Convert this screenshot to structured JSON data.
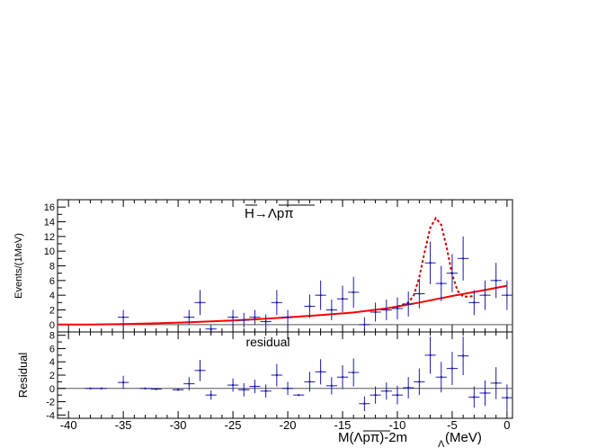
{
  "chart_data": [
    {
      "type": "scatter",
      "panel": "fit",
      "title": "",
      "annotation": "H→Λpπ",
      "annotation_overline": true,
      "ylabel": "Events/(1MeV)",
      "xlim": [
        -41,
        0.5
      ],
      "ylim": [
        -1,
        17
      ],
      "yticks": [
        0,
        2,
        4,
        6,
        8,
        10,
        12,
        14,
        16
      ],
      "grid": false,
      "series": [
        {
          "kind": "data-points-with-errors",
          "color": "#1a1aa8",
          "points": [
            {
              "x": -35,
              "y": 1,
              "err": 1
            },
            {
              "x": -29,
              "y": 1,
              "err": 1
            },
            {
              "x": -28,
              "y": 3,
              "err": 1.7
            },
            {
              "x": -27,
              "y": -0.6,
              "err": 0.6
            },
            {
              "x": -25,
              "y": 1,
              "err": 1
            },
            {
              "x": -24,
              "y": 0.6,
              "err": 1
            },
            {
              "x": -23,
              "y": 1,
              "err": 1
            },
            {
              "x": -22,
              "y": 0.4,
              "err": 1
            },
            {
              "x": -21,
              "y": 3,
              "err": 1.7
            },
            {
              "x": -20,
              "y": 1,
              "err": 1
            },
            {
              "x": -18,
              "y": 2.5,
              "err": 1.6
            },
            {
              "x": -17,
              "y": 4,
              "err": 2
            },
            {
              "x": -16,
              "y": 2,
              "err": 1.4
            },
            {
              "x": -15,
              "y": 3.5,
              "err": 1.8
            },
            {
              "x": -14,
              "y": 4.4,
              "err": 2.1
            },
            {
              "x": -13,
              "y": 0,
              "err": 1
            },
            {
              "x": -12,
              "y": 1.7,
              "err": 1.3
            },
            {
              "x": -11,
              "y": 2,
              "err": 1.4
            },
            {
              "x": -10,
              "y": 2.2,
              "err": 1.5
            },
            {
              "x": -9,
              "y": 2.8,
              "err": 1.7
            },
            {
              "x": -8,
              "y": 4.2,
              "err": 2
            },
            {
              "x": -7,
              "y": 8.4,
              "err": 2.9
            },
            {
              "x": -6,
              "y": 5.6,
              "err": 2.4
            },
            {
              "x": -5,
              "y": 7,
              "err": 2.6
            },
            {
              "x": -4,
              "y": 9,
              "err": 3
            },
            {
              "x": -3,
              "y": 3,
              "err": 1.7
            },
            {
              "x": -2,
              "y": 4,
              "err": 2
            },
            {
              "x": -1,
              "y": 6,
              "err": 2.4
            },
            {
              "x": 0,
              "y": 4,
              "err": 2
            }
          ]
        },
        {
          "kind": "background-fit",
          "style": "solid",
          "color": "#ff0000",
          "x": [
            -41,
            -38,
            -35,
            -32,
            -29,
            -26,
            -23,
            -20,
            -17,
            -14,
            -11,
            -8,
            -5,
            -2,
            0
          ],
          "y": [
            0.0,
            0.02,
            0.08,
            0.18,
            0.32,
            0.5,
            0.72,
            0.98,
            1.29,
            1.64,
            2.2,
            3.0,
            3.9,
            4.7,
            5.3
          ]
        },
        {
          "kind": "signal-plus-background",
          "style": "dotted",
          "color": "#cc0000",
          "x": [
            -10,
            -9,
            -8.5,
            -8,
            -7.5,
            -7,
            -6.5,
            -6,
            -5.5,
            -5,
            -4.5,
            -4,
            -3.5,
            -3
          ],
          "y": [
            2.45,
            3.0,
            4.0,
            6.5,
            10.0,
            13.2,
            14.5,
            13.6,
            10.5,
            6.8,
            4.6,
            3.8,
            3.8,
            3.9
          ]
        }
      ]
    },
    {
      "type": "scatter",
      "panel": "residual",
      "annotation": "residual",
      "xlabel": "M(Λpπ)-2m",
      "xlabel_overline_part": "Λpπ",
      "xlabel_subscript": "Λ",
      "xlabel_unit": "(MeV)",
      "ylabel": "Residual",
      "xlim": [
        -41,
        0.5
      ],
      "ylim": [
        -4.5,
        8.5
      ],
      "yticks": [
        -4,
        -2,
        0,
        2,
        4,
        6,
        8
      ],
      "xticks": [
        -40,
        -35,
        -30,
        -25,
        -20,
        -15,
        -10,
        -5,
        0
      ],
      "grid": false,
      "series": [
        {
          "kind": "data-points-with-errors",
          "color": "#1a1aa8",
          "points": [
            {
              "x": -38,
              "y": 0,
              "err": 0
            },
            {
              "x": -37,
              "y": 0,
              "err": 0
            },
            {
              "x": -35,
              "y": 0.9,
              "err": 1
            },
            {
              "x": -33,
              "y": 0,
              "err": 0
            },
            {
              "x": -32,
              "y": -0.1,
              "err": 0
            },
            {
              "x": -30,
              "y": -0.2,
              "err": 0
            },
            {
              "x": -29,
              "y": 0.7,
              "err": 1
            },
            {
              "x": -28,
              "y": 2.7,
              "err": 1.6
            },
            {
              "x": -27,
              "y": -1,
              "err": 0.7
            },
            {
              "x": -25,
              "y": 0.5,
              "err": 1
            },
            {
              "x": -24,
              "y": -0.2,
              "err": 1
            },
            {
              "x": -23,
              "y": 0.3,
              "err": 1
            },
            {
              "x": -22,
              "y": -0.4,
              "err": 1
            },
            {
              "x": -21,
              "y": 2,
              "err": 1.7
            },
            {
              "x": -20,
              "y": 0,
              "err": 1
            },
            {
              "x": -19,
              "y": -1,
              "err": 0
            },
            {
              "x": -18,
              "y": 1,
              "err": 1.5
            },
            {
              "x": -17,
              "y": 2.5,
              "err": 1.9
            },
            {
              "x": -16,
              "y": 0.4,
              "err": 1.3
            },
            {
              "x": -15,
              "y": 1.7,
              "err": 1.8
            },
            {
              "x": -14,
              "y": 2.4,
              "err": 2.1
            },
            {
              "x": -13,
              "y": -2.3,
              "err": 1.1
            },
            {
              "x": -12,
              "y": -1,
              "err": 1.3
            },
            {
              "x": -11,
              "y": -0.4,
              "err": 1.3
            },
            {
              "x": -10,
              "y": -1,
              "err": 1.4
            },
            {
              "x": -9,
              "y": 0.1,
              "err": 1.6
            },
            {
              "x": -8,
              "y": 1,
              "err": 2
            },
            {
              "x": -7,
              "y": 5,
              "err": 2.8
            },
            {
              "x": -6,
              "y": 1.7,
              "err": 2.3
            },
            {
              "x": -5,
              "y": 3,
              "err": 2.5
            },
            {
              "x": -4,
              "y": 4.9,
              "err": 2.9
            },
            {
              "x": -3,
              "y": -1.3,
              "err": 1.6
            },
            {
              "x": -2,
              "y": -0.7,
              "err": 1.9
            },
            {
              "x": -1,
              "y": 0.8,
              "err": 2.4
            },
            {
              "x": 0,
              "y": -1.4,
              "err": 2
            }
          ]
        }
      ]
    }
  ]
}
